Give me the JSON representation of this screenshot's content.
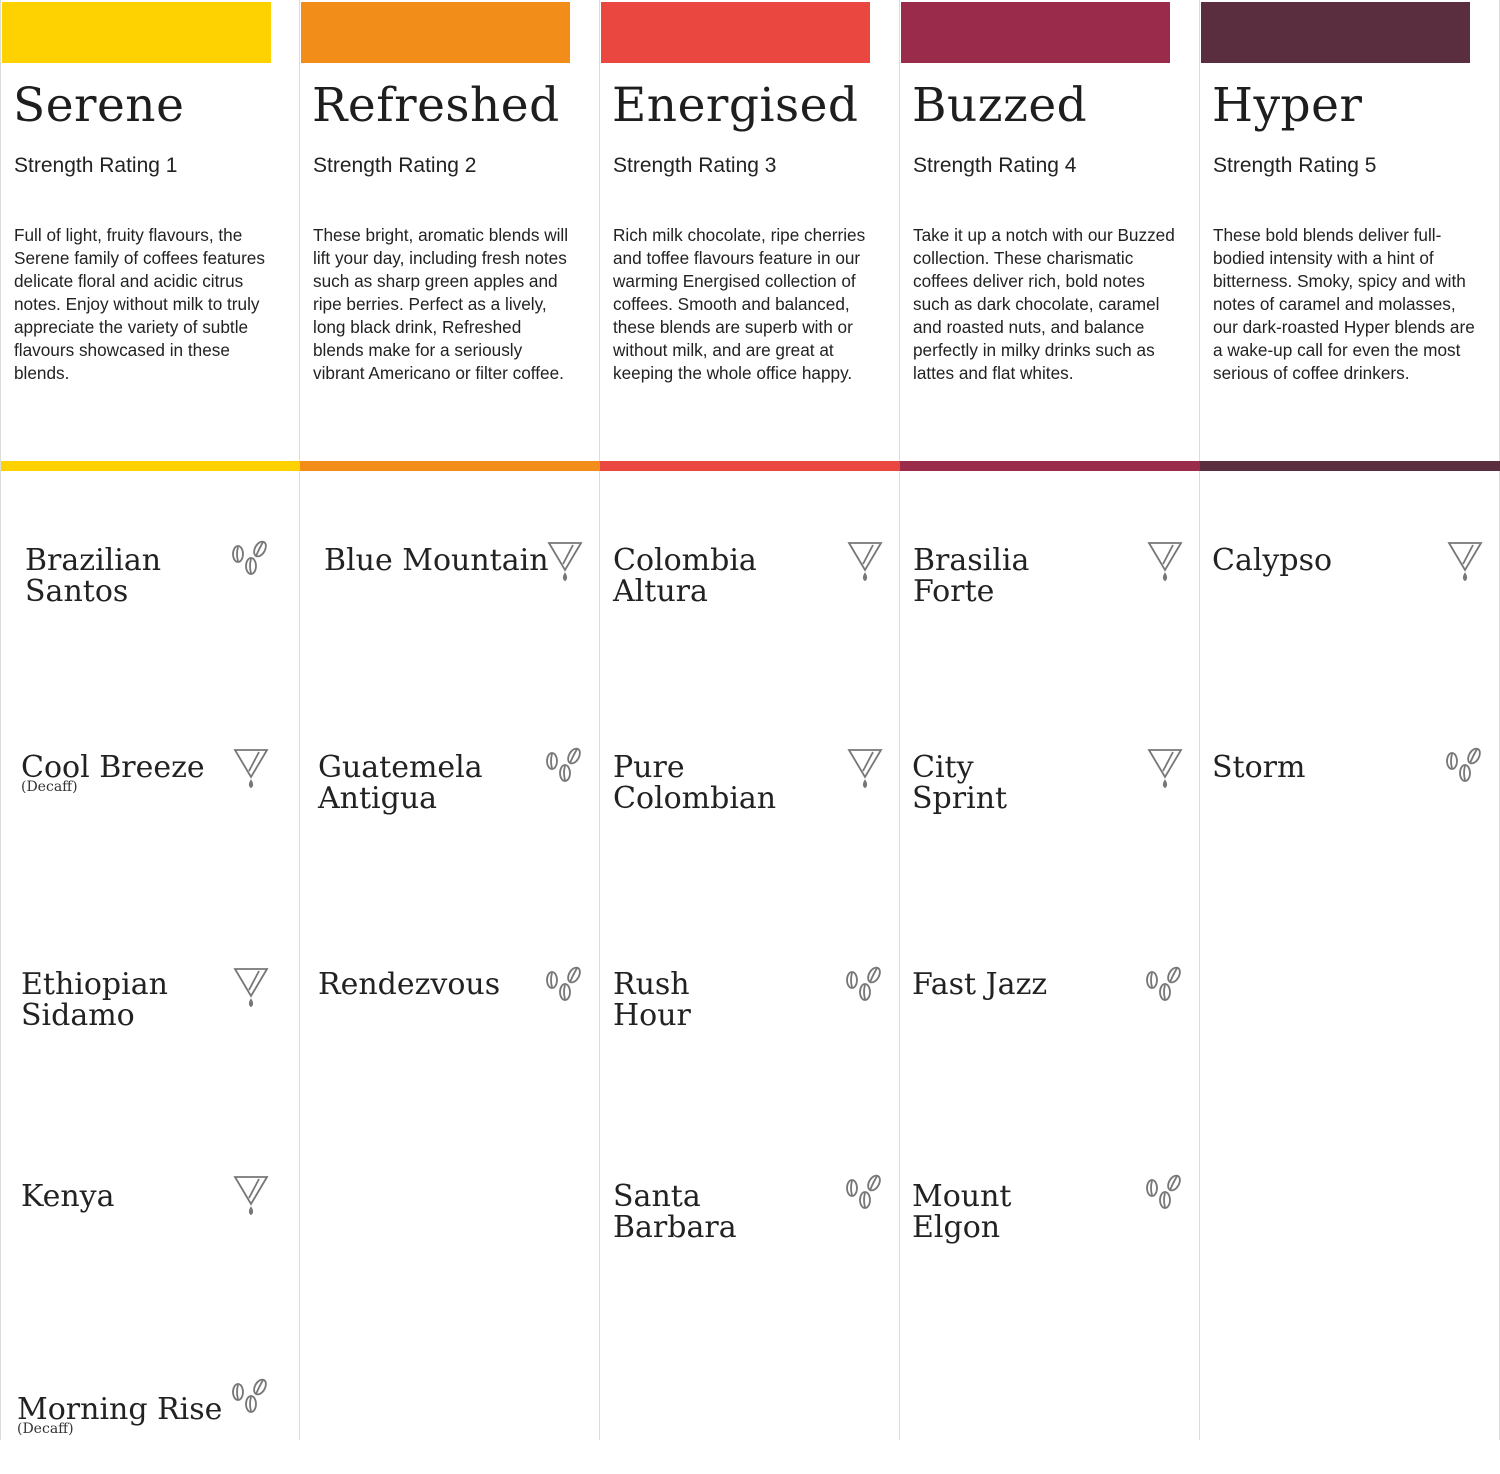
{
  "colors": {
    "serene": "#fed101",
    "refreshed": "#f28d1a",
    "energised": "#ea4740",
    "buzzed": "#9a2b4b",
    "hyper": "#5a2e3e",
    "icon_stroke": "#777777"
  },
  "columns": [
    {
      "key": "serene",
      "title": "Serene",
      "strength": "Strength Rating 1",
      "description": "Full of light, fruity flavours, the Serene family of coffees features delicate floral and acidic citrus notes. Enjoy without milk to truly appreciate the variety of subtle flavours showcased in these blends.",
      "coffees": [
        {
          "name": "Brazilian\nSantos",
          "note": "",
          "icon": "beans-icon"
        },
        {
          "name": "Cool Breeze",
          "note": "(Decaff)",
          "icon": "filter-drip-icon"
        },
        {
          "name": "Ethiopian\nSidamo",
          "note": "",
          "icon": "filter-drip-icon"
        },
        {
          "name": "Kenya",
          "note": "",
          "icon": "filter-drip-icon"
        },
        {
          "name": "Morning Rise",
          "note": "(Decaff)",
          "icon": "beans-icon"
        }
      ]
    },
    {
      "key": "refreshed",
      "title": "Refreshed",
      "strength": "Strength Rating 2",
      "description": "These bright, aromatic blends will lift your day, including fresh notes such as sharp green apples and ripe berries. Perfect as a lively, long black drink, Refreshed blends make for a seriously vibrant Americano or filter coffee.",
      "coffees": [
        {
          "name": "Blue Mountain",
          "note": "",
          "icon": "filter-drip-icon"
        },
        {
          "name": "Guatemela\nAntigua",
          "note": "",
          "icon": "beans-icon"
        },
        {
          "name": "Rendezvous",
          "note": "",
          "icon": "beans-icon"
        }
      ]
    },
    {
      "key": "energised",
      "title": "Energised",
      "strength": "Strength Rating 3",
      "description": "Rich milk chocolate, ripe cherries and toffee flavours feature in our warming Energised collection of coffees. Smooth and balanced, these blends are superb with or without milk, and are great at keeping the whole office happy.",
      "coffees": [
        {
          "name": "Colombia\nAltura",
          "note": "",
          "icon": "filter-drip-icon"
        },
        {
          "name": "Pure\nColombian",
          "note": "",
          "icon": "filter-drip-icon"
        },
        {
          "name": "Rush\nHour",
          "note": "",
          "icon": "beans-icon"
        },
        {
          "name": "Santa\nBarbara",
          "note": "",
          "icon": "beans-icon"
        }
      ]
    },
    {
      "key": "buzzed",
      "title": "Buzzed",
      "strength": "Strength Rating 4",
      "description": "Take it up a notch with our Buzzed collection. These charismatic coffees deliver rich, bold notes such as dark chocolate, caramel and roasted nuts, and balance perfectly in milky drinks such as lattes and flat whites.",
      "coffees": [
        {
          "name": "Brasilia\nForte",
          "note": "",
          "icon": "filter-drip-icon"
        },
        {
          "name": "City\nSprint",
          "note": "",
          "icon": "filter-drip-icon"
        },
        {
          "name": "Fast Jazz",
          "note": "",
          "icon": "beans-icon"
        },
        {
          "name": "Mount\nElgon",
          "note": "",
          "icon": "beans-icon"
        }
      ]
    },
    {
      "key": "hyper",
      "title": "Hyper",
      "strength": "Strength Rating 5",
      "description": "These bold blends deliver full-bodied intensity with a hint of bitterness. Smoky, spicy and with notes of caramel and molasses, our dark-roasted Hyper blends are a wake-up call for even the most serious of coffee drinkers.",
      "coffees": [
        {
          "name": "Calypso",
          "note": "",
          "icon": "filter-drip-icon"
        },
        {
          "name": "Storm",
          "note": "",
          "icon": "beans-icon"
        }
      ]
    }
  ]
}
